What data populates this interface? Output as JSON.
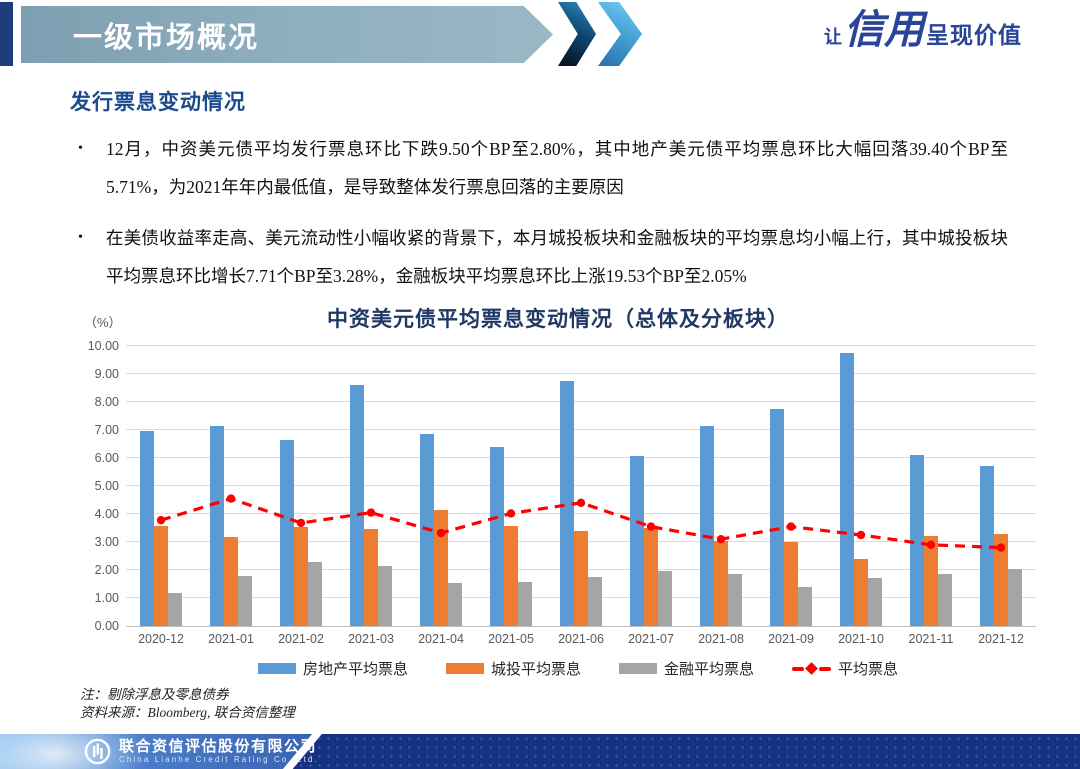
{
  "header": {
    "title": "一级市场概况",
    "slogan_prefix": "让",
    "slogan_brand": "信用",
    "slogan_suffix": "呈现价值"
  },
  "section": {
    "heading": "发行票息变动情况"
  },
  "bullets": [
    "12月，中资美元债平均发行票息环比下跌9.50个BP至2.80%，其中地产美元债平均票息环比大幅回落39.40个BP至5.71%，为2021年年内最低值，是导致整体发行票息回落的主要原因",
    "在美债收益率走高、美元流动性小幅收紧的背景下，本月城投板块和金融板块的平均票息均小幅上行，其中城投板块平均票息环比增长7.71个BP至3.28%，金融板块平均票息环比上涨19.53个BP至2.05%"
  ],
  "chart_data": {
    "type": "bar+line",
    "title": "中资美元债平均票息变动情况（总体及分板块）",
    "unit_label": "（%）",
    "categories": [
      "2020-12",
      "2021-01",
      "2021-02",
      "2021-03",
      "2021-04",
      "2021-05",
      "2021-06",
      "2021-07",
      "2021-08",
      "2021-09",
      "2021-10",
      "2021-11",
      "2021-12"
    ],
    "series": [
      {
        "name": "房地产平均票息",
        "type": "bar",
        "color": "#5B9BD5",
        "values": [
          6.95,
          7.15,
          6.65,
          8.6,
          6.87,
          6.38,
          8.75,
          6.08,
          7.15,
          7.75,
          9.75,
          6.1,
          5.71
        ]
      },
      {
        "name": "城投平均票息",
        "type": "bar",
        "color": "#ED7D31",
        "values": [
          3.58,
          3.18,
          3.55,
          3.45,
          4.15,
          3.57,
          3.41,
          3.5,
          3.02,
          3.0,
          2.38,
          3.2,
          3.28
        ]
      },
      {
        "name": "金融平均票息",
        "type": "bar",
        "color": "#A5A5A5",
        "values": [
          1.17,
          1.78,
          2.27,
          2.15,
          1.52,
          1.57,
          1.74,
          1.95,
          1.85,
          1.41,
          1.72,
          1.85,
          2.05
        ]
      },
      {
        "name": "平均票息",
        "type": "line",
        "color": "#FF0000",
        "dashed": true,
        "values": [
          3.78,
          4.55,
          3.68,
          4.05,
          3.32,
          4.02,
          4.4,
          3.55,
          3.1,
          3.55,
          3.25,
          2.9,
          2.8
        ]
      }
    ],
    "ylim": [
      0,
      10
    ],
    "ytick_step": 1,
    "yticks": [
      "0.00",
      "1.00",
      "2.00",
      "3.00",
      "4.00",
      "5.00",
      "6.00",
      "7.00",
      "8.00",
      "9.00",
      "10.00"
    ],
    "grid": true,
    "legend_position": "bottom"
  },
  "notes": [
    "注：剔除浮息及零息债券",
    "资料来源：Bloomberg, 联合资信整理"
  ],
  "footer": {
    "company_cn": "联合资信评估股份有限公司",
    "company_en": "China Lianhe Credit Rating Co.,Ltd."
  }
}
